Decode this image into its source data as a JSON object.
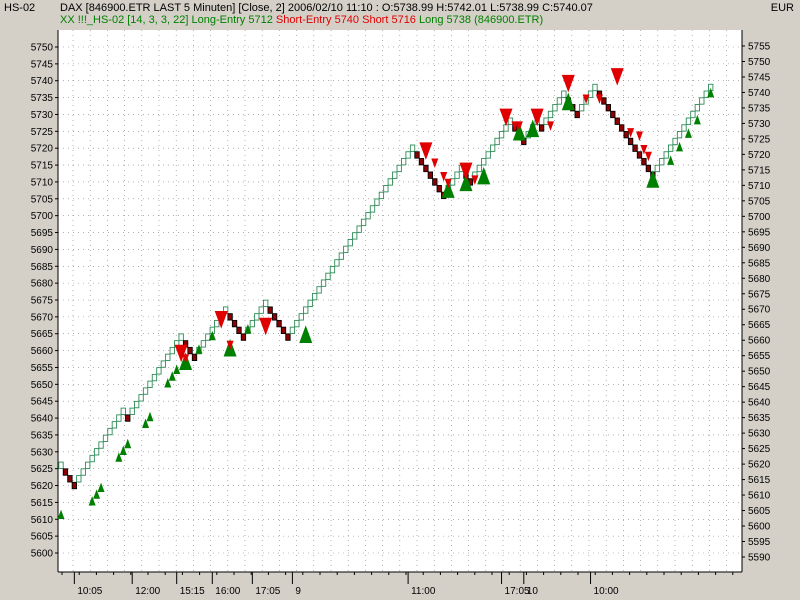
{
  "header": {
    "panel": "HS-02",
    "currency": "EUR",
    "instrument_line": "DAX [846900.ETR LAST 5 Minuten] [Close, 2] 2006/02/10 11:10 : O:5738.99 H:5742.01 L:5738.99 C:5740.07",
    "indicator": "XX !!!_HS-02 [14, 3, 3, 22]",
    "long_entry": "Long-Entry 5712",
    "short_entry": "Short-Entry 5740",
    "short": "Short 5716",
    "long": "Long 5738",
    "symbol": "(846900.ETR)"
  },
  "colors": {
    "plot_background": "#ffffff",
    "panel_background": "#d4d0c8",
    "brick_up": "#2e8b57",
    "brick_down": "#8b0000",
    "long_marker": "#008000",
    "short_marker": "#e00000",
    "grid": "#808080"
  },
  "chart_data": {
    "type": "scatter",
    "brick_size": 2,
    "left_axis": {
      "min": 5600,
      "max": 5750,
      "step": 5,
      "labels": [
        "5750",
        "5745",
        "5740",
        "5735",
        "5730",
        "5725",
        "5720",
        "5715",
        "5710",
        "5705",
        "5700",
        "5695",
        "5690",
        "5685",
        "5680",
        "5675",
        "5670",
        "5665",
        "5660",
        "5655",
        "5650",
        "5645",
        "5640",
        "5635",
        "5630",
        "5625",
        "5620",
        "5615",
        "5610",
        "5605",
        "5600"
      ]
    },
    "right_axis": {
      "min": 5590,
      "max": 5755,
      "step": 5,
      "labels": [
        "5755",
        "5750",
        "5745",
        "5740",
        "5735",
        "5730",
        "5725",
        "5720",
        "5715",
        "5710",
        "5705",
        "5700",
        "5695",
        "5690",
        "5685",
        "5680",
        "5675",
        "5670",
        "5665",
        "5660",
        "5655",
        "5650",
        "5645",
        "5640",
        "5635",
        "5630",
        "5625",
        "5620",
        "5615",
        "5610",
        "5605",
        "5600",
        "5595",
        "5590"
      ]
    },
    "time_labels": [
      {
        "brick": 3,
        "label": "10:05"
      },
      {
        "brick": 16,
        "label": "12:00"
      },
      {
        "brick": 26,
        "label": "15:15"
      },
      {
        "brick": 34,
        "label": "16:00"
      },
      {
        "brick": 43,
        "label": "17:05"
      },
      {
        "brick": 52,
        "label": "9"
      },
      {
        "brick": 78,
        "label": "11:00"
      },
      {
        "brick": 99,
        "label": "17:05"
      },
      {
        "brick": 104,
        "label": "10"
      },
      {
        "brick": 119,
        "label": "10:00"
      }
    ],
    "bricks": [
      5626,
      5624,
      5622,
      5620,
      5622,
      5624,
      5626,
      5628,
      5630,
      5632,
      5634,
      5636,
      5638,
      5640,
      5642,
      5640,
      5642,
      5644,
      5646,
      5648,
      5650,
      5652,
      5654,
      5656,
      5658,
      5660,
      5662,
      5664,
      5662,
      5660,
      5658,
      5660,
      5662,
      5664,
      5666,
      5668,
      5670,
      5672,
      5670,
      5668,
      5666,
      5664,
      5666,
      5668,
      5670,
      5672,
      5674,
      5672,
      5670,
      5668,
      5666,
      5664,
      5666,
      5668,
      5670,
      5672,
      5674,
      5676,
      5678,
      5680,
      5682,
      5684,
      5686,
      5688,
      5690,
      5692,
      5694,
      5696,
      5698,
      5700,
      5702,
      5704,
      5706,
      5708,
      5710,
      5712,
      5714,
      5716,
      5718,
      5720,
      5718,
      5716,
      5714,
      5712,
      5710,
      5708,
      5706,
      5708,
      5710,
      5712,
      5714,
      5712,
      5710,
      5712,
      5714,
      5716,
      5718,
      5720,
      5722,
      5724,
      5726,
      5728,
      5726,
      5724,
      5722,
      5724,
      5726,
      5728,
      5726,
      5728,
      5730,
      5732,
      5734,
      5736,
      5734,
      5732,
      5730,
      5732,
      5734,
      5736,
      5738,
      5736,
      5734,
      5732,
      5730,
      5728,
      5726,
      5724,
      5722,
      5720,
      5718,
      5716,
      5714,
      5712,
      5714,
      5716,
      5718,
      5720,
      5722,
      5724,
      5726,
      5728,
      5730,
      5732,
      5734,
      5736,
      5738
    ],
    "long_signals": [
      {
        "brick": 0,
        "price": 5611,
        "size": "small"
      },
      {
        "brick": 7,
        "price": 5615,
        "size": "small"
      },
      {
        "brick": 8,
        "price": 5617,
        "size": "small"
      },
      {
        "brick": 9,
        "price": 5619,
        "size": "small"
      },
      {
        "brick": 13,
        "price": 5628,
        "size": "small"
      },
      {
        "brick": 14,
        "price": 5630,
        "size": "small"
      },
      {
        "brick": 15,
        "price": 5632,
        "size": "small"
      },
      {
        "brick": 19,
        "price": 5638,
        "size": "small"
      },
      {
        "brick": 20,
        "price": 5640,
        "size": "small"
      },
      {
        "brick": 24,
        "price": 5650,
        "size": "small"
      },
      {
        "brick": 25,
        "price": 5652,
        "size": "small"
      },
      {
        "brick": 26,
        "price": 5654,
        "size": "small"
      },
      {
        "brick": 28,
        "price": 5656,
        "size": "large"
      },
      {
        "brick": 31,
        "price": 5660,
        "size": "small"
      },
      {
        "brick": 34,
        "price": 5664,
        "size": "small"
      },
      {
        "brick": 38,
        "price": 5660,
        "size": "large"
      },
      {
        "brick": 42,
        "price": 5666,
        "size": "small"
      },
      {
        "brick": 55,
        "price": 5664,
        "size": "large"
      },
      {
        "brick": 87,
        "price": 5707,
        "size": "large"
      },
      {
        "brick": 91,
        "price": 5709,
        "size": "large"
      },
      {
        "brick": 95,
        "price": 5711,
        "size": "large"
      },
      {
        "brick": 103,
        "price": 5724,
        "size": "large"
      },
      {
        "brick": 106,
        "price": 5725,
        "size": "large"
      },
      {
        "brick": 114,
        "price": 5733,
        "size": "large"
      },
      {
        "brick": 133,
        "price": 5710,
        "size": "large"
      },
      {
        "brick": 137,
        "price": 5716,
        "size": "small"
      },
      {
        "brick": 139,
        "price": 5720,
        "size": "small"
      },
      {
        "brick": 141,
        "price": 5724,
        "size": "small"
      },
      {
        "brick": 143,
        "price": 5728,
        "size": "small"
      },
      {
        "brick": 146,
        "price": 5736,
        "size": "small"
      }
    ],
    "short_signals": [
      {
        "brick": 27,
        "price": 5660,
        "size": "large"
      },
      {
        "brick": 28,
        "price": 5658,
        "size": "small"
      },
      {
        "brick": 36,
        "price": 5670,
        "size": "large"
      },
      {
        "brick": 38,
        "price": 5662,
        "size": "small"
      },
      {
        "brick": 46,
        "price": 5668,
        "size": "large"
      },
      {
        "brick": 82,
        "price": 5720,
        "size": "large"
      },
      {
        "brick": 84,
        "price": 5716,
        "size": "small"
      },
      {
        "brick": 86,
        "price": 5712,
        "size": "small"
      },
      {
        "brick": 87,
        "price": 5710,
        "size": "small"
      },
      {
        "brick": 91,
        "price": 5714,
        "size": "large"
      },
      {
        "brick": 93,
        "price": 5711,
        "size": "small"
      },
      {
        "brick": 100,
        "price": 5730,
        "size": "large"
      },
      {
        "brick": 102,
        "price": 5727,
        "size": "small"
      },
      {
        "brick": 103,
        "price": 5727,
        "size": "small"
      },
      {
        "brick": 107,
        "price": 5730,
        "size": "large"
      },
      {
        "brick": 110,
        "price": 5727,
        "size": "small"
      },
      {
        "brick": 114,
        "price": 5740,
        "size": "large"
      },
      {
        "brick": 118,
        "price": 5735,
        "size": "small"
      },
      {
        "brick": 121,
        "price": 5735,
        "size": "small"
      },
      {
        "brick": 125,
        "price": 5742,
        "size": "large"
      },
      {
        "brick": 128,
        "price": 5725,
        "size": "small"
      },
      {
        "brick": 130,
        "price": 5724,
        "size": "small"
      },
      {
        "brick": 131,
        "price": 5720,
        "size": "small"
      },
      {
        "brick": 132,
        "price": 5718,
        "size": "small"
      }
    ]
  }
}
